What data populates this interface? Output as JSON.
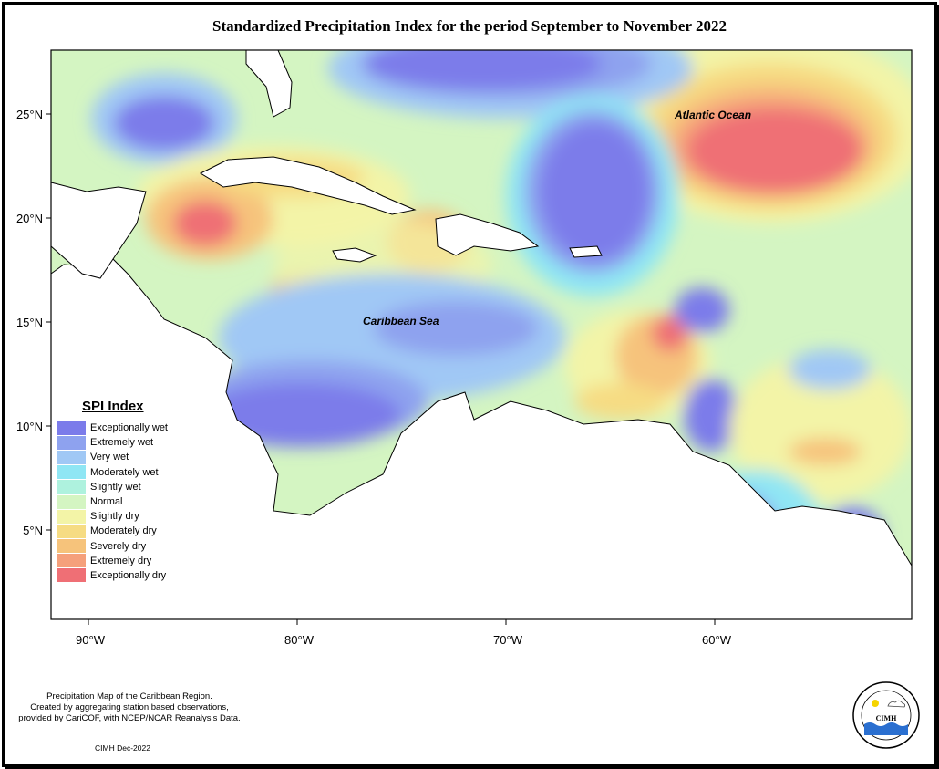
{
  "title": "Standardized Precipitation Index for the period September to November 2022",
  "map": {
    "lat_ticks": [
      "25°N",
      "20°N",
      "15°N",
      "10°N",
      "5°N"
    ],
    "lon_ticks": [
      "90°W",
      "80°W",
      "70°W",
      "60°W"
    ],
    "labels": {
      "atlantic": "Atlantic Ocean",
      "caribbean": "Caribbean Sea"
    },
    "projection_extent": {
      "lon": [
        -92,
        -49
      ],
      "lat": [
        1.5,
        28.5
      ]
    }
  },
  "legend": {
    "title": "SPI Index",
    "items": [
      {
        "label": "Exceptionally wet",
        "color": "#7b7bea"
      },
      {
        "label": "Extremely wet",
        "color": "#8ea2ef"
      },
      {
        "label": "Very wet",
        "color": "#a0c8f5"
      },
      {
        "label": "Moderately wet",
        "color": "#8fe6f4"
      },
      {
        "label": "Slightly wet",
        "color": "#aef2de"
      },
      {
        "label": "Normal",
        "color": "#d4f5c2"
      },
      {
        "label": "Slightly dry",
        "color": "#f3f4a7"
      },
      {
        "label": "Moderately dry",
        "color": "#f6dc83"
      },
      {
        "label": "Severely dry",
        "color": "#f6c37b"
      },
      {
        "label": "Extremely dry",
        "color": "#f5a07b"
      },
      {
        "label": "Exceptionally dry",
        "color": "#ef6f75"
      }
    ]
  },
  "footnote": {
    "line1": "Precipitation Map of the Caribbean Region.",
    "line2": "Created by aggregating station based observations,",
    "line3": "provided by CariCOF, with NCEP/NCAR Reanalysis Data."
  },
  "credit": "CIMH Dec-2022",
  "logo": {
    "text": "CIMH"
  }
}
